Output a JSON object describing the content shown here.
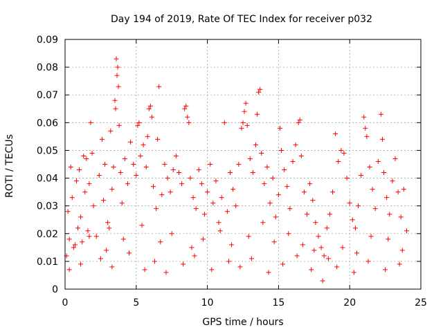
{
  "chart_data": {
    "type": "scatter",
    "title": "Day 194 of 2019, Rate Of TEC Index for receiver p032",
    "xlabel": "GPS time / hours",
    "ylabel": "ROTI / TECUs",
    "xlim": [
      0,
      25
    ],
    "ylim": [
      0,
      0.09
    ],
    "x_ticks": [
      0,
      5,
      10,
      15,
      20,
      25
    ],
    "x_tick_labels": [
      "0",
      "5",
      "10",
      "15",
      "20",
      "25"
    ],
    "y_ticks": [
      0,
      0.01,
      0.02,
      0.03,
      0.04,
      0.05,
      0.06,
      0.07,
      0.08,
      0.09
    ],
    "y_tick_labels": [
      "0",
      "0.01",
      "0.02",
      "0.03",
      "0.04",
      "0.05",
      "0.06",
      "0.07",
      "0.08",
      "0.09"
    ],
    "grid": true,
    "marker": "+",
    "color": "#ff0000",
    "series": [
      {
        "name": "ROTI",
        "points": [
          [
            0.1,
            0.012
          ],
          [
            0.2,
            0.028
          ],
          [
            0.3,
            0.018
          ],
          [
            0.4,
            0.044
          ],
          [
            0.5,
            0.033
          ],
          [
            0.6,
            0.015
          ],
          [
            0.8,
            0.039
          ],
          [
            0.9,
            0.022
          ],
          [
            1.0,
            0.043
          ],
          [
            1.1,
            0.026
          ],
          [
            1.2,
            0.017
          ],
          [
            1.3,
            0.048
          ],
          [
            1.4,
            0.035
          ],
          [
            1.5,
            0.047
          ],
          [
            1.6,
            0.021
          ],
          [
            1.7,
            0.038
          ],
          [
            1.8,
            0.06
          ],
          [
            1.9,
            0.049
          ],
          [
            2.0,
            0.03
          ],
          [
            2.2,
            0.019
          ],
          [
            2.4,
            0.041
          ],
          [
            2.6,
            0.054
          ],
          [
            2.7,
            0.032
          ],
          [
            2.8,
            0.045
          ],
          [
            3.0,
            0.024
          ],
          [
            3.2,
            0.057
          ],
          [
            3.3,
            0.036
          ],
          [
            3.4,
            0.044
          ],
          [
            3.5,
            0.068
          ],
          [
            3.55,
            0.065
          ],
          [
            3.6,
            0.083
          ],
          [
            3.65,
            0.077
          ],
          [
            3.7,
            0.08
          ],
          [
            3.75,
            0.073
          ],
          [
            3.8,
            0.059
          ],
          [
            3.9,
            0.042
          ],
          [
            4.0,
            0.031
          ],
          [
            4.2,
            0.047
          ],
          [
            4.4,
            0.038
          ],
          [
            4.6,
            0.053
          ],
          [
            4.8,
            0.045
          ],
          [
            5.0,
            0.041
          ],
          [
            5.1,
            0.059
          ],
          [
            5.2,
            0.06
          ],
          [
            5.3,
            0.048
          ],
          [
            5.5,
            0.052
          ],
          [
            5.7,
            0.044
          ],
          [
            5.8,
            0.055
          ],
          [
            5.9,
            0.065
          ],
          [
            6.0,
            0.066
          ],
          [
            6.1,
            0.062
          ],
          [
            6.2,
            0.037
          ],
          [
            6.4,
            0.029
          ],
          [
            6.5,
            0.054
          ],
          [
            6.6,
            0.073
          ],
          [
            6.8,
            0.034
          ],
          [
            7.0,
            0.045
          ],
          [
            7.2,
            0.04
          ],
          [
            7.4,
            0.035
          ],
          [
            7.6,
            0.043
          ],
          [
            7.8,
            0.048
          ],
          [
            8.0,
            0.042
          ],
          [
            8.2,
            0.038
          ],
          [
            8.4,
            0.065
          ],
          [
            8.5,
            0.066
          ],
          [
            8.6,
            0.062
          ],
          [
            8.7,
            0.06
          ],
          [
            8.8,
            0.04
          ],
          [
            9.0,
            0.033
          ],
          [
            9.2,
            0.029
          ],
          [
            9.4,
            0.043
          ],
          [
            9.6,
            0.038
          ],
          [
            9.8,
            0.027
          ],
          [
            10.0,
            0.035
          ],
          [
            10.2,
            0.045
          ],
          [
            10.4,
            0.031
          ],
          [
            10.6,
            0.039
          ],
          [
            10.8,
            0.024
          ],
          [
            11.0,
            0.033
          ],
          [
            11.2,
            0.06
          ],
          [
            11.4,
            0.028
          ],
          [
            11.6,
            0.042
          ],
          [
            11.8,
            0.036
          ],
          [
            12.0,
            0.03
          ],
          [
            12.2,
            0.045
          ],
          [
            12.4,
            0.058
          ],
          [
            12.5,
            0.06
          ],
          [
            12.6,
            0.064
          ],
          [
            12.7,
            0.067
          ],
          [
            12.8,
            0.059
          ],
          [
            13.0,
            0.047
          ],
          [
            13.2,
            0.042
          ],
          [
            13.4,
            0.052
          ],
          [
            13.5,
            0.063
          ],
          [
            13.6,
            0.071
          ],
          [
            13.7,
            0.072
          ],
          [
            13.8,
            0.049
          ],
          [
            14.0,
            0.038
          ],
          [
            14.2,
            0.044
          ],
          [
            14.4,
            0.031
          ],
          [
            14.6,
            0.04
          ],
          [
            14.8,
            0.026
          ],
          [
            15.0,
            0.034
          ],
          [
            15.1,
            0.058
          ],
          [
            15.2,
            0.05
          ],
          [
            15.4,
            0.043
          ],
          [
            15.6,
            0.037
          ],
          [
            15.8,
            0.029
          ],
          [
            16.0,
            0.046
          ],
          [
            16.2,
            0.052
          ],
          [
            16.4,
            0.06
          ],
          [
            16.5,
            0.061
          ],
          [
            16.6,
            0.048
          ],
          [
            16.8,
            0.035
          ],
          [
            17.0,
            0.027
          ],
          [
            17.2,
            0.038
          ],
          [
            17.4,
            0.032
          ],
          [
            17.6,
            0.024
          ],
          [
            17.8,
            0.019
          ],
          [
            18.0,
            0.015
          ],
          [
            18.2,
            0.012
          ],
          [
            18.4,
            0.022
          ],
          [
            18.6,
            0.027
          ],
          [
            18.8,
            0.035
          ],
          [
            19.0,
            0.056
          ],
          [
            19.2,
            0.046
          ],
          [
            19.4,
            0.05
          ],
          [
            19.6,
            0.049
          ],
          [
            19.8,
            0.04
          ],
          [
            20.0,
            0.031
          ],
          [
            20.2,
            0.025
          ],
          [
            20.4,
            0.022
          ],
          [
            20.6,
            0.03
          ],
          [
            20.8,
            0.041
          ],
          [
            21.0,
            0.062
          ],
          [
            21.1,
            0.058
          ],
          [
            21.2,
            0.055
          ],
          [
            21.4,
            0.044
          ],
          [
            21.6,
            0.036
          ],
          [
            21.8,
            0.029
          ],
          [
            22.0,
            0.046
          ],
          [
            22.2,
            0.063
          ],
          [
            22.3,
            0.054
          ],
          [
            22.4,
            0.042
          ],
          [
            22.6,
            0.033
          ],
          [
            22.8,
            0.027
          ],
          [
            23.0,
            0.039
          ],
          [
            23.2,
            0.047
          ],
          [
            23.4,
            0.035
          ],
          [
            23.6,
            0.026
          ],
          [
            23.8,
            0.036
          ],
          [
            24.0,
            0.021
          ],
          [
            0.3,
            0.007
          ],
          [
            1.1,
            0.009
          ],
          [
            2.5,
            0.011
          ],
          [
            3.3,
            0.008
          ],
          [
            4.5,
            0.013
          ],
          [
            5.6,
            0.007
          ],
          [
            6.3,
            0.01
          ],
          [
            7.1,
            0.006
          ],
          [
            8.3,
            0.009
          ],
          [
            9.1,
            0.012
          ],
          [
            10.3,
            0.007
          ],
          [
            11.5,
            0.01
          ],
          [
            12.3,
            0.008
          ],
          [
            13.1,
            0.011
          ],
          [
            14.3,
            0.006
          ],
          [
            15.3,
            0.009
          ],
          [
            16.3,
            0.012
          ],
          [
            17.3,
            0.007
          ],
          [
            18.1,
            0.003
          ],
          [
            19.1,
            0.008
          ],
          [
            20.3,
            0.006
          ],
          [
            21.3,
            0.01
          ],
          [
            22.5,
            0.007
          ],
          [
            23.5,
            0.009
          ],
          [
            0.7,
            0.016
          ],
          [
            1.7,
            0.019
          ],
          [
            2.9,
            0.014
          ],
          [
            3.1,
            0.022
          ],
          [
            4.1,
            0.018
          ],
          [
            5.4,
            0.023
          ],
          [
            6.7,
            0.017
          ],
          [
            7.5,
            0.02
          ],
          [
            8.9,
            0.015
          ],
          [
            9.7,
            0.018
          ],
          [
            10.9,
            0.021
          ],
          [
            11.7,
            0.016
          ],
          [
            12.9,
            0.019
          ],
          [
            13.9,
            0.024
          ],
          [
            14.7,
            0.017
          ],
          [
            15.7,
            0.02
          ],
          [
            16.7,
            0.016
          ],
          [
            17.5,
            0.014
          ],
          [
            18.5,
            0.011
          ],
          [
            19.5,
            0.015
          ],
          [
            20.5,
            0.013
          ],
          [
            21.5,
            0.019
          ],
          [
            22.7,
            0.018
          ],
          [
            23.7,
            0.014
          ]
        ]
      }
    ]
  }
}
